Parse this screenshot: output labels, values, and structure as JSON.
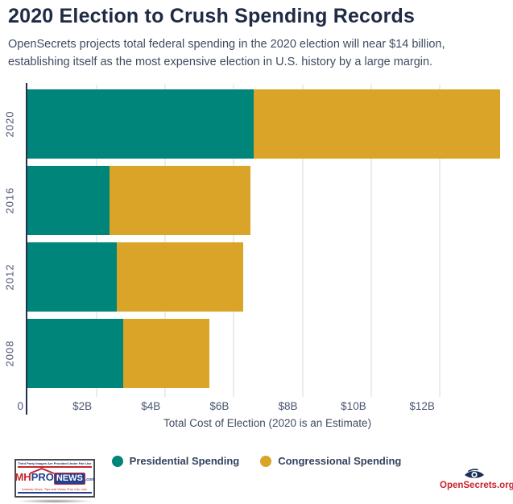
{
  "header": {
    "title": "2020 Election to Crush Spending Records",
    "subtitle_lines": [
      "OpenSecrets projects total federal spending in the 2020 election will near $14 billion,",
      "establishing itself as the most expensive election in U.S. history by a large margin."
    ]
  },
  "chart_data": {
    "type": "bar",
    "orientation": "horizontal",
    "stacked": true,
    "categories": [
      "2020",
      "2016",
      "2012",
      "2008"
    ],
    "series": [
      {
        "name": "Presidential Spending",
        "color": "#00857a",
        "values": [
          6.6,
          2.4,
          2.6,
          2.8
        ]
      },
      {
        "name": "Congressional Spending",
        "color": "#d9a428",
        "values": [
          7.2,
          4.1,
          3.7,
          2.5
        ]
      }
    ],
    "totals_billions": [
      13.8,
      6.5,
      6.3,
      5.3
    ],
    "xlabel": "Total Cost of Election (2020 is an Estimate)",
    "xlim": [
      0,
      14
    ],
    "x_ticks": [
      {
        "value": 0,
        "label": "0"
      },
      {
        "value": 2,
        "label": "$2B"
      },
      {
        "value": 4,
        "label": "$4B"
      },
      {
        "value": 6,
        "label": "$6B"
      },
      {
        "value": 8,
        "label": "$8B"
      },
      {
        "value": 10,
        "label": "$10B"
      },
      {
        "value": 12,
        "label": "$12B"
      }
    ],
    "grid": "vertical",
    "legend_position": "bottom"
  },
  "footer": {
    "mhpronews_logo": {
      "disclaimer": "Third Party Images Are Provided Under Fair Use Guidelines.",
      "brand_mh": "MH",
      "brand_pro": "PRO",
      "brand_news": "NEWS",
      "brand_tld": ".com",
      "tagline": "Industry News, Tips and Views Pros Can Use."
    },
    "opensecrets_logo": {
      "text": "OpenSecrets.org"
    }
  },
  "colors": {
    "presidential_teal": "#00857a",
    "congressional_gold": "#d9a428",
    "title_navy": "#1f2a44",
    "axis_navy": "#262f4e",
    "label_gray_navy": "#4a5674",
    "logo_red": "#c1272d",
    "logo_blue": "#24408e",
    "opensecrets_red": "#c9232a"
  }
}
